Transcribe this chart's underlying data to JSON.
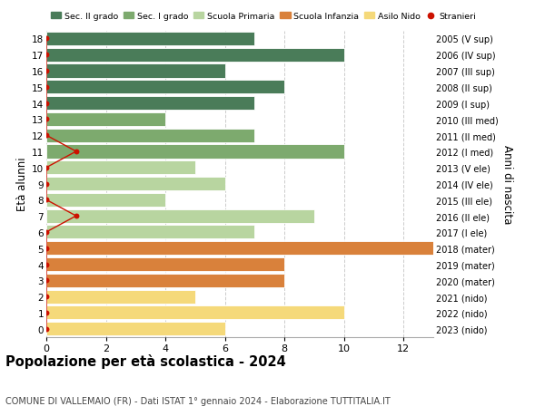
{
  "ages": [
    18,
    17,
    16,
    15,
    14,
    13,
    12,
    11,
    10,
    9,
    8,
    7,
    6,
    5,
    4,
    3,
    2,
    1,
    0
  ],
  "right_labels": [
    "2005 (V sup)",
    "2006 (IV sup)",
    "2007 (III sup)",
    "2008 (II sup)",
    "2009 (I sup)",
    "2010 (III med)",
    "2011 (II med)",
    "2012 (I med)",
    "2013 (V ele)",
    "2014 (IV ele)",
    "2015 (III ele)",
    "2016 (II ele)",
    "2017 (I ele)",
    "2018 (mater)",
    "2019 (mater)",
    "2020 (mater)",
    "2021 (nido)",
    "2022 (nido)",
    "2023 (nido)"
  ],
  "values": [
    7,
    10,
    6,
    8,
    7,
    4,
    7,
    10,
    5,
    6,
    4,
    9,
    7,
    13,
    8,
    8,
    5,
    10,
    6
  ],
  "bar_colors": [
    "#4a7c59",
    "#4a7c59",
    "#4a7c59",
    "#4a7c59",
    "#4a7c59",
    "#7daa6e",
    "#7daa6e",
    "#7daa6e",
    "#b8d5a0",
    "#b8d5a0",
    "#b8d5a0",
    "#b8d5a0",
    "#b8d5a0",
    "#d9813b",
    "#d9813b",
    "#d9813b",
    "#f5d97a",
    "#f5d97a",
    "#f5d97a"
  ],
  "stranieri_line_ages": [
    18,
    17,
    16,
    15,
    14,
    13,
    12,
    11,
    10,
    9,
    8,
    7,
    6,
    5,
    4,
    3,
    2,
    1,
    0
  ],
  "stranieri_line_x": [
    0,
    0,
    0,
    0,
    0,
    0,
    0,
    1,
    0,
    0,
    0,
    1,
    0,
    0,
    0,
    0,
    0,
    0,
    0
  ],
  "stranieri_dots_ages": [
    18,
    17,
    16,
    15,
    14,
    13,
    12,
    11,
    10,
    9,
    8,
    7,
    6,
    5,
    4,
    3,
    2,
    1,
    0
  ],
  "stranieri_dots_x": [
    0,
    0,
    0,
    0,
    0,
    0,
    0,
    1,
    0,
    0,
    0,
    1,
    0,
    0,
    0,
    0,
    0,
    0,
    0
  ],
  "legend_labels": [
    "Sec. II grado",
    "Sec. I grado",
    "Scuola Primaria",
    "Scuola Infanzia",
    "Asilo Nido",
    "Stranieri"
  ],
  "legend_colors": [
    "#4a7c59",
    "#7daa6e",
    "#b8d5a0",
    "#d9813b",
    "#f5d97a",
    "#cc1100"
  ],
  "title": "Popolazione per età scolastica - 2024",
  "subtitle": "COMUNE DI VALLEMAIO (FR) - Dati ISTAT 1° gennaio 2024 - Elaborazione TUTTITALIA.IT",
  "ylabel_left": "Età alunni",
  "ylabel_right": "Anni di nascita",
  "xlim_max": 13,
  "xticks": [
    0,
    2,
    4,
    6,
    8,
    10,
    12
  ],
  "background_color": "#ffffff",
  "grid_color": "#cccccc",
  "bar_height": 0.85
}
